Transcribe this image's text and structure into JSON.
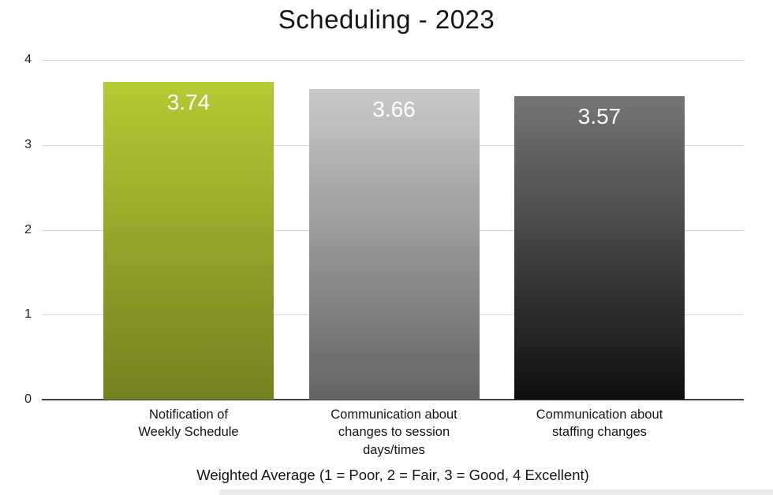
{
  "chart_data": {
    "type": "bar",
    "title": "Scheduling - 2023",
    "categories": [
      "Notification of\nWeekly Schedule",
      "Communication about\nchanges to session\ndays/times",
      "Communication about\nstaffing changes"
    ],
    "values": [
      3.74,
      3.66,
      3.57
    ],
    "value_labels": [
      "3.74",
      "3.66",
      "3.57"
    ],
    "xlabel": "Weighted Average (1 = Poor, 2 = Fair, 3 = Good, 4 Excellent)",
    "ylabel": "",
    "ylim": [
      0,
      4
    ],
    "yticks": [
      0,
      1,
      2,
      3,
      4
    ],
    "grid": true,
    "legend": false,
    "bar_gradients": [
      {
        "top": "#b7c934",
        "bottom": "#75801f"
      },
      {
        "top": "#c9c9c9",
        "bottom": "#636363"
      },
      {
        "top": "#757575",
        "bottom": "#0e0e0e"
      }
    ],
    "value_label_color": "#ffffff",
    "gridline_color": "#d8d8d8",
    "axis_line_color": "#3f3f3f"
  }
}
